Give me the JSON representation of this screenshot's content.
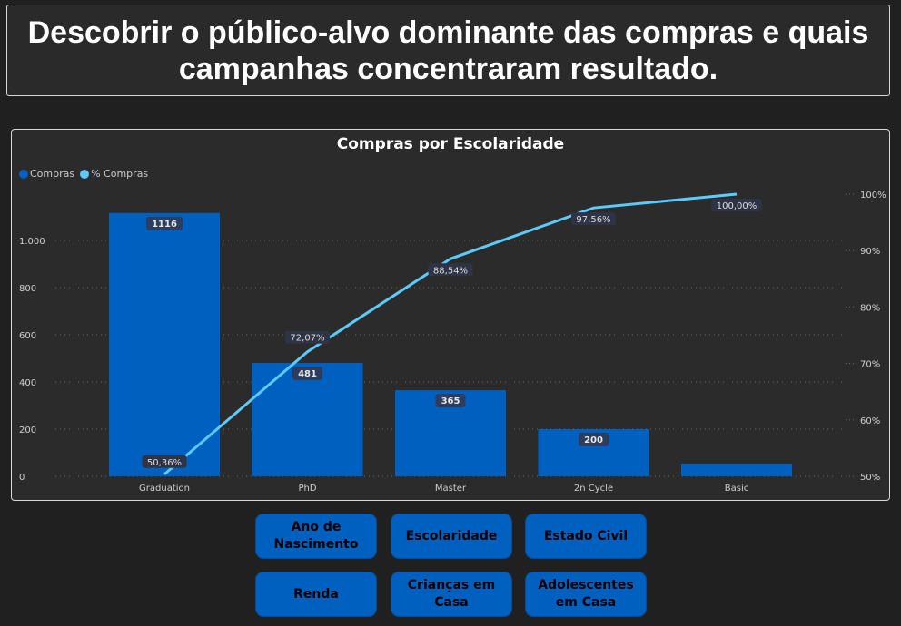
{
  "header": {
    "title": "Descobrir o público-alvo dominante das compras e quais campanhas concentraram resultado."
  },
  "colors": {
    "bar": "#0060bf",
    "line": "#5ccafb",
    "background": "#202020",
    "panel": "#2b2b2b"
  },
  "chart_data": {
    "type": "bar+line",
    "title": "Compras por Escolaridade",
    "categories": [
      "Graduation",
      "PhD",
      "Master",
      "2n Cycle",
      "Basic"
    ],
    "series": [
      {
        "name": "Compras",
        "type": "bar",
        "axis": "left",
        "values": [
          1116,
          481,
          365,
          200,
          54
        ],
        "labels": [
          "1116",
          "481",
          "365",
          "200",
          ""
        ]
      },
      {
        "name": "% Compras",
        "type": "line",
        "axis": "right",
        "values": [
          50.36,
          72.07,
          88.54,
          97.56,
          100.0
        ],
        "labels": [
          "50,36%",
          "72,07%",
          "88,54%",
          "97,56%",
          "100,00%"
        ]
      }
    ],
    "left_axis": {
      "ylim": [
        0,
        1116
      ],
      "ticks": [
        "0",
        "200",
        "400",
        "600",
        "800",
        "1.000"
      ],
      "tick_values": [
        0,
        200,
        400,
        600,
        800,
        1000
      ]
    },
    "right_axis": {
      "ylim": [
        50,
        100
      ],
      "ticks": [
        "50%",
        "60%",
        "70%",
        "80%",
        "90%",
        "100%"
      ],
      "tick_values": [
        50,
        60,
        70,
        80,
        90,
        100
      ]
    },
    "legend": "top-left",
    "grid": true
  },
  "buttons": [
    "Ano de Nascimento",
    "Escolaridade",
    "Estado Civil",
    "Renda",
    "Crianças em Casa",
    "Adolescentes em Casa"
  ]
}
